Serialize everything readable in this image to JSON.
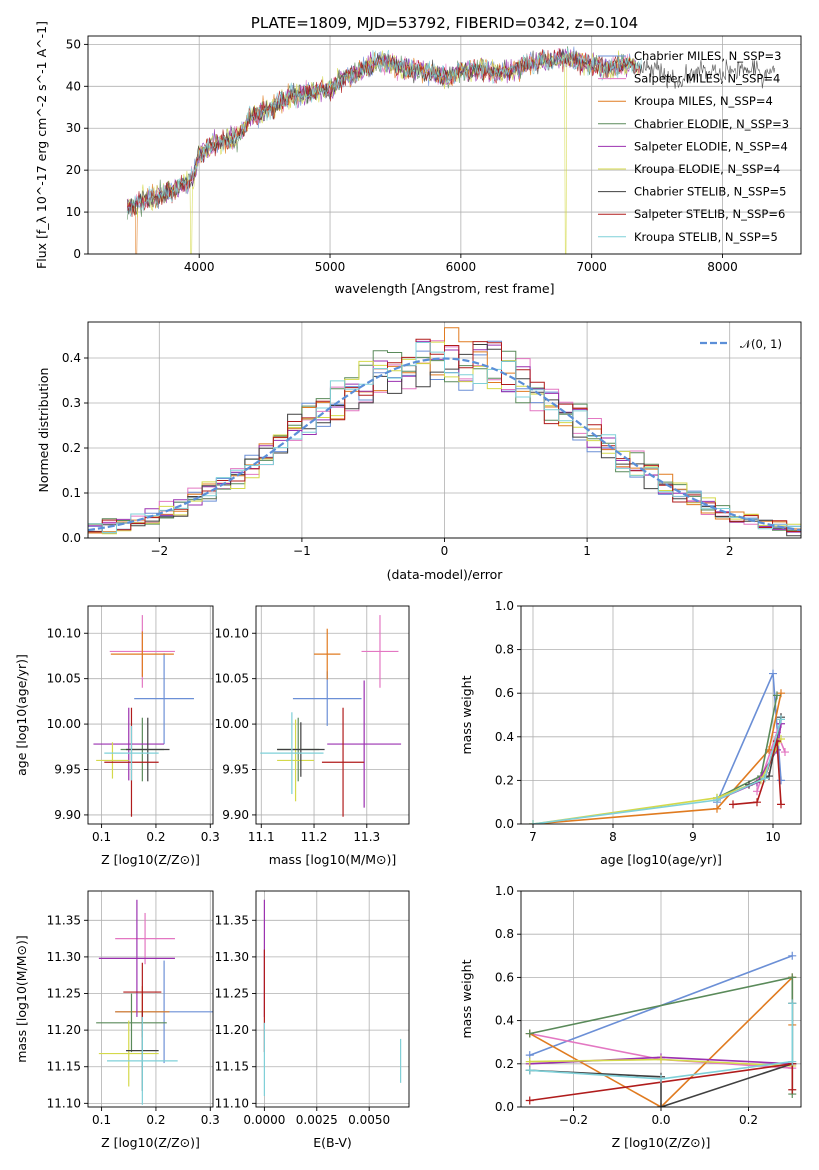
{
  "chart_data": [
    {
      "type": "line",
      "title": "PLATE=1809, MJD=53792, FIBERID=0342, z=0.104",
      "xlabel": "wavelength [Angstrom, rest frame]",
      "ylabel": "Flux [f_λ 10^-17 erg cm^-2 s^-1 A^-1]",
      "xlim": [
        3150,
        8600
      ],
      "ylim": [
        0,
        52
      ],
      "xticks": [
        4000,
        5000,
        6000,
        7000,
        8000
      ],
      "yticks": [
        0,
        10,
        20,
        30,
        40,
        50
      ],
      "legend_position": "right",
      "series": [
        {
          "name": "Chabrier MILES, N_SSP=3",
          "color": "#6b8fd6"
        },
        {
          "name": "Salpeter MILES, N_SSP=4",
          "color": "#e377c2"
        },
        {
          "name": "Kroupa MILES, N_SSP=4",
          "color": "#e07b20"
        },
        {
          "name": "Chabrier ELODIE, N_SSP=3",
          "color": "#5a8a5a"
        },
        {
          "name": "Salpeter ELODIE, N_SSP=4",
          "color": "#9b30b0"
        },
        {
          "name": "Kroupa ELODIE, N_SSP=4",
          "color": "#d4d94a"
        },
        {
          "name": "Chabrier STELIB, N_SSP=5",
          "color": "#404040"
        },
        {
          "name": "Salpeter STELIB, N_SSP=6",
          "color": "#b01c1c"
        },
        {
          "name": "Kroupa STELIB, N_SSP=5",
          "color": "#7fd0d8"
        }
      ],
      "spectrum_anchors": {
        "x": [
          3450,
          3600,
          3700,
          3800,
          3900,
          3950,
          4000,
          4100,
          4200,
          4300,
          4400,
          4500,
          4600,
          4700,
          4800,
          4900,
          5000,
          5100,
          5200,
          5300,
          5400,
          5500,
          5600,
          5700,
          5800,
          5900,
          6000,
          6100,
          6200,
          6300,
          6400,
          6500,
          6600,
          6700,
          6800,
          6900,
          7000,
          7100,
          7200,
          7300,
          7400,
          7500,
          7600,
          7700,
          7800,
          7900,
          8000,
          8100,
          8200,
          8300,
          8400
        ],
        "y": [
          11,
          13,
          14,
          15,
          17,
          18,
          24,
          26,
          27,
          28,
          33,
          34,
          36,
          38,
          38,
          39,
          39,
          42,
          43,
          45,
          46,
          45,
          44,
          44,
          43,
          42,
          44,
          44,
          44,
          43,
          44,
          45,
          46,
          46,
          47,
          46,
          45,
          44,
          45,
          45,
          44,
          44,
          42,
          41,
          44,
          43,
          43,
          44,
          44,
          43,
          44
        ]
      },
      "spike_series_wavelengths": [
        3520,
        3940,
        6800,
        7420
      ]
    },
    {
      "type": "bar",
      "subtype": "step-histogram",
      "xlabel": "(data-model)/error",
      "ylabel": "Normed distribution",
      "xlim": [
        -2.5,
        2.5
      ],
      "ylim": [
        0,
        0.48
      ],
      "xticks": [
        -2,
        -1,
        0,
        1,
        2
      ],
      "yticks": [
        0.0,
        0.1,
        0.2,
        0.3,
        0.4
      ],
      "legend": "𝒩(0, 1)",
      "legend_position": "top-right",
      "bin_width": 0.1,
      "reference_curve": "standard normal density",
      "reference_color": "#5b8fd8"
    },
    {
      "type": "scatter",
      "subtype": "errorbar",
      "xlabel": "Z [log10(Z/Z⊙)]",
      "ylabel": "age [log10(age/yr)]",
      "xlim": [
        0.075,
        0.305
      ],
      "ylim": [
        9.89,
        10.13
      ],
      "xticks": [
        0.1,
        0.2,
        0.3
      ],
      "yticks": [
        9.9,
        9.95,
        10.0,
        10.05,
        10.1
      ],
      "points": [
        {
          "x": 0.215,
          "y": 10.028,
          "xerr": 0.055,
          "yerr": 0.05
        },
        {
          "x": 0.175,
          "y": 10.08,
          "xerr": 0.06,
          "yerr": 0.04
        },
        {
          "x": 0.175,
          "y": 10.077,
          "xerr": 0.058,
          "yerr": 0.025
        },
        {
          "x": 0.175,
          "y": 9.972,
          "xerr": 0.04,
          "yerr": 0.035
        },
        {
          "x": 0.15,
          "y": 9.978,
          "xerr": 0.065,
          "yerr": 0.04
        },
        {
          "x": 0.12,
          "y": 9.96,
          "xerr": 0.03,
          "yerr": 0.02
        },
        {
          "x": 0.185,
          "y": 9.972,
          "xerr": 0.04,
          "yerr": 0.035
        },
        {
          "x": 0.155,
          "y": 9.958,
          "xerr": 0.05,
          "yerr": 0.06
        },
        {
          "x": 0.155,
          "y": 9.968,
          "xerr": 0.05,
          "yerr": 0.03
        }
      ]
    },
    {
      "type": "scatter",
      "subtype": "errorbar",
      "xlabel": "mass [log10(M/M⊙)]",
      "ylabel": "",
      "xlim": [
        11.09,
        11.38
      ],
      "ylim": [
        9.89,
        10.13
      ],
      "xticks": [
        11.1,
        11.2,
        11.3
      ],
      "yticks": [
        9.9,
        9.95,
        10.0,
        10.05,
        10.1
      ],
      "points": [
        {
          "x": 11.225,
          "y": 10.028,
          "xerr": 0.065,
          "yerr": 0.03
        },
        {
          "x": 11.325,
          "y": 10.08,
          "xerr": 0.035,
          "yerr": 0.04
        },
        {
          "x": 11.225,
          "y": 10.077,
          "xerr": 0.025,
          "yerr": 0.028
        },
        {
          "x": 11.17,
          "y": 9.972,
          "xerr": 0.04,
          "yerr": 0.035
        },
        {
          "x": 11.295,
          "y": 9.978,
          "xerr": 0.07,
          "yerr": 0.07
        },
        {
          "x": 11.165,
          "y": 9.96,
          "xerr": 0.035,
          "yerr": 0.045
        },
        {
          "x": 11.175,
          "y": 9.972,
          "xerr": 0.045,
          "yerr": 0.03
        },
        {
          "x": 11.255,
          "y": 9.958,
          "xerr": 0.04,
          "yerr": 0.06
        },
        {
          "x": 11.158,
          "y": 9.968,
          "xerr": 0.06,
          "yerr": 0.045
        }
      ]
    },
    {
      "type": "line",
      "xlabel": "age  [log10(age/yr)]",
      "ylabel": "mass weight",
      "xlim": [
        6.85,
        10.35
      ],
      "ylim": [
        0,
        1
      ],
      "xticks": [
        7,
        8,
        9,
        10
      ],
      "yticks": [
        0.0,
        0.2,
        0.4,
        0.6,
        0.8,
        1.0
      ],
      "series": [
        {
          "x": [
            9.3,
            10.0,
            10.1
          ],
          "y": [
            0.1,
            0.69,
            0.2
          ]
        },
        {
          "x": [
            9.8,
            10.05,
            10.15
          ],
          "y": [
            0.15,
            0.42,
            0.33
          ]
        },
        {
          "x": [
            7.0,
            9.3,
            9.95,
            10.1
          ],
          "y": [
            0.0,
            0.07,
            0.34,
            0.6
          ]
        },
        {
          "x": [
            9.3,
            9.85,
            10.05
          ],
          "y": [
            0.12,
            0.22,
            0.59
          ]
        },
        {
          "x": [
            9.3,
            9.8,
            10.05,
            10.1
          ],
          "y": [
            0.11,
            0.19,
            0.34,
            0.46
          ]
        },
        {
          "x": [
            7.0,
            9.3,
            9.85,
            10.1
          ],
          "y": [
            0.0,
            0.12,
            0.2,
            0.39
          ]
        },
        {
          "x": [
            9.7,
            9.95,
            10.1
          ],
          "y": [
            0.18,
            0.22,
            0.49
          ]
        },
        {
          "x": [
            9.5,
            9.8,
            10.05,
            10.1
          ],
          "y": [
            0.09,
            0.1,
            0.38,
            0.09
          ]
        },
        {
          "x": [
            7.0,
            9.3,
            9.9,
            10.1
          ],
          "y": [
            0.0,
            0.11,
            0.21,
            0.48
          ]
        }
      ]
    },
    {
      "type": "scatter",
      "subtype": "errorbar",
      "xlabel": "Z [log10(Z/Z⊙)]",
      "ylabel": "mass [log10(M/M⊙)]",
      "xlim": [
        0.075,
        0.305
      ],
      "ylim": [
        11.095,
        11.39
      ],
      "xticks": [
        0.1,
        0.2,
        0.3
      ],
      "yticks": [
        11.1,
        11.15,
        11.2,
        11.25,
        11.3,
        11.35
      ],
      "points": [
        {
          "x": 0.215,
          "y": 11.225,
          "xerr": 0.09,
          "yerr": 0.07
        },
        {
          "x": 0.18,
          "y": 11.325,
          "xerr": 0.055,
          "yerr": 0.035
        },
        {
          "x": 0.175,
          "y": 11.225,
          "xerr": 0.05,
          "yerr": 0.035
        },
        {
          "x": 0.155,
          "y": 11.21,
          "xerr": 0.065,
          "yerr": 0.04
        },
        {
          "x": 0.165,
          "y": 11.298,
          "xerr": 0.07,
          "yerr": 0.08
        },
        {
          "x": 0.15,
          "y": 11.168,
          "xerr": 0.055,
          "yerr": 0.045
        },
        {
          "x": 0.175,
          "y": 11.172,
          "xerr": 0.03,
          "yerr": 0.055
        },
        {
          "x": 0.175,
          "y": 11.252,
          "xerr": 0.035,
          "yerr": 0.04
        },
        {
          "x": 0.175,
          "y": 11.158,
          "xerr": 0.065,
          "yerr": 0.06
        }
      ]
    },
    {
      "type": "scatter",
      "subtype": "errorbar",
      "xlabel": "E(B-V)",
      "ylabel": "",
      "xlim": [
        -0.0004,
        0.0069
      ],
      "ylim": [
        11.095,
        11.39
      ],
      "xticks": [
        0.0,
        0.0025,
        0.005
      ],
      "xtick_labels": [
        "0.0000",
        "0.0025",
        "0.0050"
      ],
      "yticks": [
        11.1,
        11.15,
        11.2,
        11.25,
        11.3,
        11.35
      ],
      "points": [
        {
          "x": 0.0,
          "y": 11.298,
          "xerr": 0.0,
          "yerr": 0.08
        },
        {
          "x": 0.0,
          "y": 11.24,
          "xerr": 0.0,
          "yerr": 0.07
        },
        {
          "x": 0.0,
          "y": 11.16,
          "xerr": 0.0,
          "yerr": 0.05
        },
        {
          "x": 0.0065,
          "y": 11.158,
          "xerr": 0.0,
          "yerr": 0.03
        }
      ]
    },
    {
      "type": "line",
      "xlabel": "Z [log10(Z/Z⊙)]",
      "ylabel": "mass weight",
      "xlim": [
        -0.32,
        0.32
      ],
      "ylim": [
        0,
        1
      ],
      "xticks": [
        -0.2,
        0.0,
        0.2
      ],
      "yticks": [
        0.0,
        0.2,
        0.4,
        0.6,
        0.8,
        1.0
      ],
      "series": [
        {
          "x": [
            -0.3,
            0.3
          ],
          "y": [
            0.24,
            0.7
          ]
        },
        {
          "x": [
            -0.3,
            0.0,
            0.3
          ],
          "y": [
            0.34,
            0.22,
            0.18
          ]
        },
        {
          "x": [
            -0.3,
            0.0,
            0.3,
            0.3
          ],
          "y": [
            0.34,
            0.0,
            0.6,
            0.38
          ]
        },
        {
          "x": [
            -0.3,
            0.3,
            0.3
          ],
          "y": [
            0.34,
            0.6,
            0.06
          ]
        },
        {
          "x": [
            -0.3,
            0.0,
            0.3
          ],
          "y": [
            0.2,
            0.23,
            0.2
          ]
        },
        {
          "x": [
            -0.3,
            0.0,
            0.3
          ],
          "y": [
            0.21,
            0.22,
            0.19
          ]
        },
        {
          "x": [
            -0.3,
            0.0,
            0.0,
            0.3,
            0.3
          ],
          "y": [
            0.17,
            0.14,
            0.0,
            0.2,
            0.48
          ]
        },
        {
          "x": [
            -0.3,
            0.3,
            0.3
          ],
          "y": [
            0.03,
            0.2,
            0.08
          ]
        },
        {
          "x": [
            -0.3,
            0.0,
            0.3,
            0.3
          ],
          "y": [
            0.17,
            0.13,
            0.21,
            0.48
          ]
        }
      ]
    }
  ]
}
